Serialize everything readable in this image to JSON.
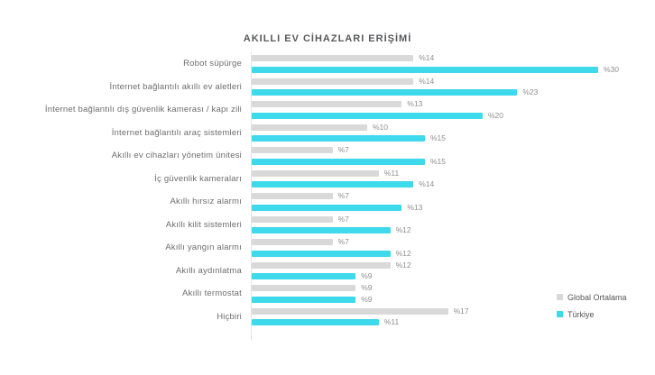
{
  "chart_data": {
    "type": "bar",
    "orientation": "horizontal",
    "title": "AKILLI EV CİHAZLARI ERİŞİMİ",
    "value_prefix": "%",
    "categories": [
      "Robot süpürge",
      "İnternet bağlantılı akıllı ev aletleri",
      "İnternet bağlantılı dış güvenlik kamerası / kapı zili",
      "İnternet bağlantılı araç sistemleri",
      "Akıllı ev cihazları yönetim ünitesi",
      "İç güvenlik kameraları",
      "Akıllı hırsız alarmı",
      "Akıllı kilit sistemleri",
      "Akıllı yangın alarmı",
      "Akıllı aydınlatma",
      "Akıllı termostat",
      "Hiçbiri"
    ],
    "series": [
      {
        "name": "Global Ortalama",
        "color": "#d9d9d9",
        "values": [
          14,
          14,
          13,
          10,
          7,
          11,
          7,
          7,
          7,
          12,
          9,
          17
        ]
      },
      {
        "name": "Türkiye",
        "color": "#3ed9eb",
        "values": [
          30,
          23,
          20,
          15,
          15,
          14,
          13,
          12,
          12,
          9,
          9,
          11
        ]
      }
    ],
    "xlim": [
      0,
      30
    ],
    "grid": false,
    "legend_position": "bottom-right",
    "colors": {
      "background": "#ffffff",
      "title_text": "#58595b",
      "category_text": "#6e6e6e",
      "value_text": "#8f8f8f",
      "axis_line": "#e4e4e4"
    }
  }
}
